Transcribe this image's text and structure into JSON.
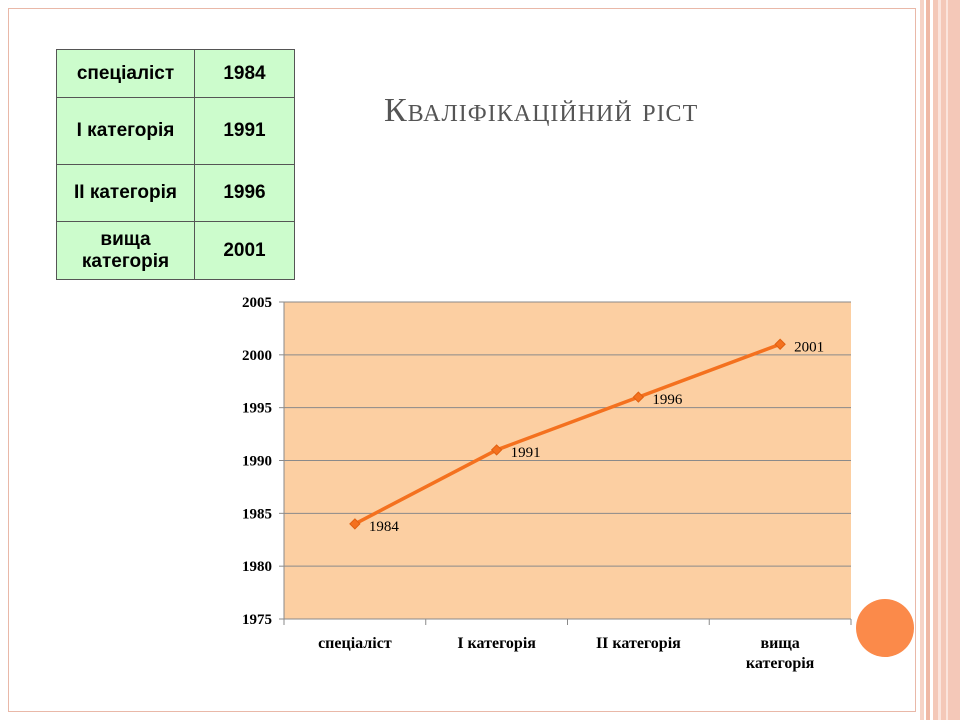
{
  "title": "Кваліфікаційний ріст",
  "table": {
    "rows": [
      {
        "label": "спеціаліст",
        "value": "1984"
      },
      {
        "label": "І категорія",
        "value": "1991"
      },
      {
        "label": "ІІ категорія",
        "value": "1996"
      },
      {
        "label": "вища категорія",
        "value": "2001"
      }
    ]
  },
  "chart_data": {
    "type": "line",
    "categories": [
      "спеціаліст",
      "І категорія",
      "ІІ категорія",
      "вища категорія"
    ],
    "series": [
      {
        "values": [
          1984,
          1991,
          1996,
          2001
        ],
        "color": "#f4711f"
      }
    ],
    "data_labels": [
      "1984",
      "1991",
      "1996",
      "2001"
    ],
    "ylim": [
      1975,
      2005
    ],
    "yticks": [
      "1975",
      "1980",
      "1985",
      "1990",
      "1995",
      "2000",
      "2005"
    ],
    "grid": true,
    "legend": "none",
    "plot_background": "#fccfa2"
  },
  "colors": {
    "table_fill": "#ccfccc",
    "accent": "#fb8a4a"
  }
}
